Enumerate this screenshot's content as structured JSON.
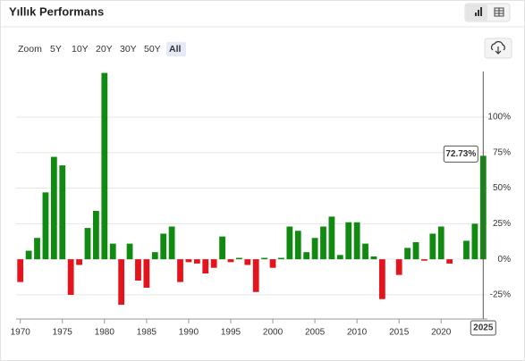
{
  "header": {
    "title": "Yıllık Performans"
  },
  "zoom": {
    "label": "Zoom",
    "options": [
      "5Y",
      "10Y",
      "20Y",
      "30Y",
      "50Y",
      "All"
    ],
    "selected": "All"
  },
  "chart_data": {
    "type": "bar",
    "x": [
      1970,
      1971,
      1972,
      1973,
      1974,
      1975,
      1976,
      1977,
      1978,
      1979,
      1980,
      1981,
      1982,
      1983,
      1984,
      1985,
      1986,
      1987,
      1988,
      1989,
      1990,
      1991,
      1992,
      1993,
      1994,
      1995,
      1996,
      1997,
      1998,
      1999,
      2000,
      2001,
      2002,
      2003,
      2004,
      2005,
      2006,
      2007,
      2008,
      2009,
      2010,
      2011,
      2012,
      2013,
      2014,
      2015,
      2016,
      2017,
      2018,
      2019,
      2020,
      2021,
      2022,
      2023,
      2024,
      2025
    ],
    "values": [
      -16,
      6,
      15,
      47,
      72,
      66,
      -25,
      -4,
      22,
      34,
      131,
      11,
      -32,
      11,
      -15,
      -20,
      5,
      18,
      23,
      -16,
      -2,
      -3,
      -10,
      -6,
      16,
      -2,
      1,
      -4,
      -23,
      1,
      -6,
      1,
      23,
      20,
      5,
      15,
      23,
      30,
      3,
      26,
      26,
      11,
      2,
      -28,
      0,
      -11,
      8,
      12,
      -1,
      18,
      23,
      -3,
      0,
      13,
      25,
      72.73
    ],
    "tooltip_label": "72.73%",
    "colors": {
      "positive": "#118a11",
      "negative": "#e3141c"
    },
    "xticks": [
      1970,
      1975,
      1980,
      1985,
      1990,
      1995,
      2000,
      2005,
      2010,
      2015,
      2020
    ],
    "ylim": [
      -42,
      132
    ],
    "yticks": [
      {
        "value": -25,
        "label": "-25%"
      },
      {
        "value": 0,
        "label": "0%"
      },
      {
        "value": 25,
        "label": "25%"
      },
      {
        "value": 50,
        "label": "50%"
      },
      {
        "value": 75,
        "label": "75%"
      },
      {
        "value": 100,
        "label": "100%"
      }
    ],
    "grid": true
  }
}
